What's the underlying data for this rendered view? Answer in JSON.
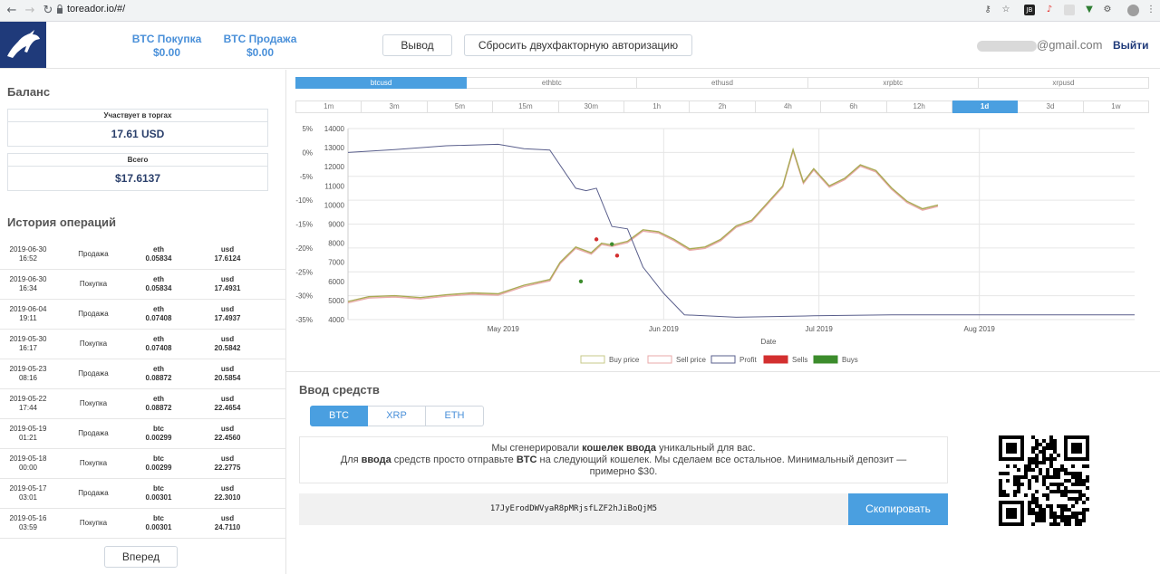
{
  "browser": {
    "url": "toreador.io/#/"
  },
  "header": {
    "buy_label": "BTC Покупка",
    "buy_value": "$0.00",
    "sell_label": "BTC Продажа",
    "sell_value": "$0.00",
    "withdraw_label": "Вывод",
    "reset_2fa_label": "Сбросить двухфакторную авторизацию",
    "email_visible": "@gmail.com",
    "logout_label": "Выйти"
  },
  "balance": {
    "title": "Баланс",
    "in_trading_label": "Участвует в торгах",
    "in_trading_value": "17.61 USD",
    "total_label": "Всего",
    "total_value": "$17.6137"
  },
  "history": {
    "title": "История операций",
    "rows": [
      {
        "date": "2019-06-30",
        "time": "16:52",
        "type": "Продажа",
        "coin": "eth",
        "amount": "0.05834",
        "cur": "usd",
        "usd": "17.6124"
      },
      {
        "date": "2019-06-30",
        "time": "16:34",
        "type": "Покупка",
        "coin": "eth",
        "amount": "0.05834",
        "cur": "usd",
        "usd": "17.4931"
      },
      {
        "date": "2019-06-04",
        "time": "19:11",
        "type": "Продажа",
        "coin": "eth",
        "amount": "0.07408",
        "cur": "usd",
        "usd": "17.4937"
      },
      {
        "date": "2019-05-30",
        "time": "16:17",
        "type": "Покупка",
        "coin": "eth",
        "amount": "0.07408",
        "cur": "usd",
        "usd": "20.5842"
      },
      {
        "date": "2019-05-23",
        "time": "08:16",
        "type": "Продажа",
        "coin": "eth",
        "amount": "0.08872",
        "cur": "usd",
        "usd": "20.5854"
      },
      {
        "date": "2019-05-22",
        "time": "17:44",
        "type": "Покупка",
        "coin": "eth",
        "amount": "0.08872",
        "cur": "usd",
        "usd": "22.4654"
      },
      {
        "date": "2019-05-19",
        "time": "01:21",
        "type": "Продажа",
        "coin": "btc",
        "amount": "0.00299",
        "cur": "usd",
        "usd": "22.4560"
      },
      {
        "date": "2019-05-18",
        "time": "00:00",
        "type": "Покупка",
        "coin": "btc",
        "amount": "0.00299",
        "cur": "usd",
        "usd": "22.2775"
      },
      {
        "date": "2019-05-17",
        "time": "03:01",
        "type": "Продажа",
        "coin": "btc",
        "amount": "0.00301",
        "cur": "usd",
        "usd": "22.3010"
      },
      {
        "date": "2019-05-16",
        "time": "03:59",
        "type": "Покупка",
        "coin": "btc",
        "amount": "0.00301",
        "cur": "usd",
        "usd": "24.7110"
      }
    ],
    "next_label": "Вперед"
  },
  "pairs": [
    "btcusd",
    "ethbtc",
    "ethusd",
    "xrpbtc",
    "xrpusd"
  ],
  "active_pair": "btcusd",
  "timeframes": [
    "1m",
    "3m",
    "5m",
    "15m",
    "30m",
    "1h",
    "2h",
    "4h",
    "6h",
    "12h",
    "1d",
    "3d",
    "1w"
  ],
  "active_timeframe": "1d",
  "chart_data": {
    "type": "line",
    "xlabel": "Date",
    "x_ticks": [
      "May 2019",
      "Jun 2019",
      "Jul 2019",
      "Aug 2019"
    ],
    "y_left_ticks": [
      "5%",
      "0%",
      "-5%",
      "-10%",
      "-15%",
      "-20%",
      "-25%",
      "-30%",
      "-35%"
    ],
    "y_left_range": [
      -35,
      5
    ],
    "y_right_ticks": [
      14000,
      13000,
      12000,
      11000,
      10000,
      9000,
      8000,
      7000,
      6000,
      5000,
      4000
    ],
    "y_right_range": [
      4000,
      14000
    ],
    "x_range": [
      "2019-04-01",
      "2019-08-31"
    ],
    "grid": true,
    "legend": [
      "Buy price",
      "Sell price",
      "Profit",
      "Sells",
      "Buys"
    ],
    "legend_position": "bottom",
    "colors": {
      "buy": "#c7c98a",
      "sell": "#e9a9a9",
      "profit": "#5a5f8c",
      "sells": "#d32f2f",
      "buys": "#3c8c2c"
    },
    "price_series": {
      "dates": [
        "2019-04-01",
        "2019-04-05",
        "2019-04-10",
        "2019-04-15",
        "2019-04-20",
        "2019-04-25",
        "2019-04-30",
        "2019-05-05",
        "2019-05-10",
        "2019-05-12",
        "2019-05-15",
        "2019-05-18",
        "2019-05-20",
        "2019-05-22",
        "2019-05-25",
        "2019-05-28",
        "2019-05-31",
        "2019-06-03",
        "2019-06-06",
        "2019-06-09",
        "2019-06-12",
        "2019-06-15",
        "2019-06-18",
        "2019-06-21",
        "2019-06-24",
        "2019-06-26",
        "2019-06-28",
        "2019-06-30",
        "2019-07-03",
        "2019-07-06",
        "2019-07-09",
        "2019-07-12",
        "2019-07-15",
        "2019-07-18",
        "2019-07-21",
        "2019-07-24"
      ],
      "values": [
        4950,
        5200,
        5250,
        5150,
        5300,
        5400,
        5350,
        5800,
        6100,
        7000,
        7800,
        7500,
        8000,
        7900,
        8100,
        8700,
        8600,
        8200,
        7700,
        7800,
        8200,
        8900,
        9200,
        10100,
        11000,
        12900,
        11200,
        11900,
        11000,
        11400,
        12100,
        11800,
        10900,
        10200,
        9800,
        10000
      ]
    },
    "profit_series": {
      "dates": [
        "2019-04-01",
        "2019-04-10",
        "2019-04-20",
        "2019-04-30",
        "2019-05-05",
        "2019-05-10",
        "2019-05-15",
        "2019-05-17",
        "2019-05-19",
        "2019-05-22",
        "2019-05-25",
        "2019-05-28",
        "2019-06-01",
        "2019-06-05",
        "2019-06-15",
        "2019-06-30",
        "2019-07-15",
        "2019-08-01",
        "2019-08-31"
      ],
      "values": [
        0.0,
        0.6,
        1.4,
        1.7,
        0.8,
        0.5,
        -7.5,
        -8.0,
        -7.5,
        -15.5,
        -16.0,
        -24.0,
        -29.5,
        -34.0,
        -34.5,
        -34.2,
        -34.0,
        -34.0,
        -34.0
      ]
    },
    "sells": [
      {
        "date": "2019-05-19",
        "price": 8200
      },
      {
        "date": "2019-05-23",
        "price": 7350
      }
    ],
    "buys": [
      {
        "date": "2019-05-16",
        "price": 6000
      },
      {
        "date": "2019-05-22",
        "price": 7950
      }
    ]
  },
  "deposit": {
    "title": "Ввод средств",
    "tabs": [
      "BTC",
      "XRP",
      "ETH"
    ],
    "active_tab": "BTC",
    "line1_a": "Мы сгенерировали ",
    "line1_b": "кошелек ввода",
    "line1_c": " уникальный для вас.",
    "line2_a": "Для ",
    "line2_b": "ввода",
    "line2_c": " средств просто отправьте ",
    "line2_d": "BTC",
    "line2_e": " на следующий кошелек. Мы сделаем все остальное. Минимальный депозит —",
    "line3": "примерно $30.",
    "address": "17JyErodDWVyaR8pMRjsfLZF2hJiBoQjM5",
    "copy_label": "Скопировать"
  }
}
